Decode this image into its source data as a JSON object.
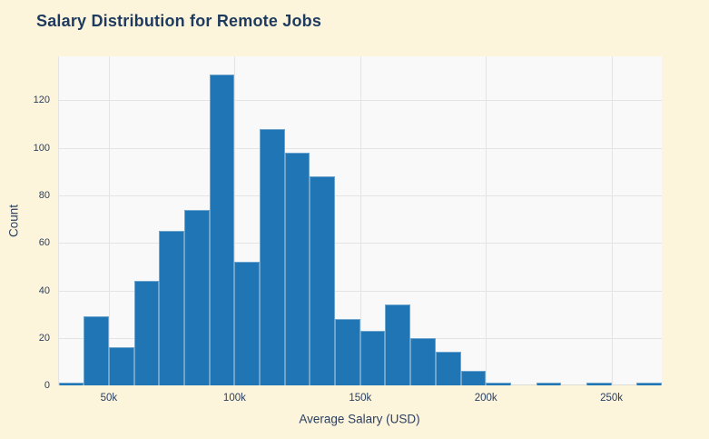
{
  "page": {
    "background_color": "#fdf4dc",
    "title_color": "#1e3a5e"
  },
  "chart_data": {
    "type": "bar",
    "subtype": "histogram",
    "title": "Salary Distribution for Remote Jobs",
    "xlabel": "Average Salary (USD)",
    "ylabel": "Count",
    "bin_start": 30000,
    "bin_width": 10000,
    "bin_starts": [
      30000,
      40000,
      50000,
      60000,
      70000,
      80000,
      90000,
      100000,
      110000,
      120000,
      130000,
      140000,
      150000,
      160000,
      170000,
      180000,
      190000,
      200000,
      210000,
      220000,
      230000,
      240000,
      250000,
      260000
    ],
    "values": [
      1,
      29,
      16,
      44,
      65,
      74,
      131,
      52,
      108,
      98,
      88,
      28,
      23,
      34,
      20,
      14,
      6,
      1,
      0,
      1,
      0,
      1,
      0,
      1
    ],
    "x_ticks": [
      {
        "value": 50000,
        "label": "50k"
      },
      {
        "value": 100000,
        "label": "100k"
      },
      {
        "value": 150000,
        "label": "150k"
      },
      {
        "value": 200000,
        "label": "200k"
      },
      {
        "value": 250000,
        "label": "250k"
      }
    ],
    "y_ticks": [
      {
        "value": 0,
        "label": "0"
      },
      {
        "value": 20,
        "label": "20"
      },
      {
        "value": 40,
        "label": "40"
      },
      {
        "value": 60,
        "label": "60"
      },
      {
        "value": 80,
        "label": "80"
      },
      {
        "value": 100,
        "label": "100"
      },
      {
        "value": 120,
        "label": "120"
      }
    ],
    "xlim": [
      29800,
      270000
    ],
    "ylim": [
      0,
      138.5
    ],
    "grid": true,
    "legend": false,
    "colors": {
      "bar_fill": "#2076b4",
      "bar_edge": "rgba(255,255,255,0.35)",
      "plot_background": "#f9f9f9",
      "grid_line": "#e4e4e4",
      "page_background": "#fdf4dc",
      "text": "#2a3f5f",
      "title": "#1e3a5e"
    }
  }
}
